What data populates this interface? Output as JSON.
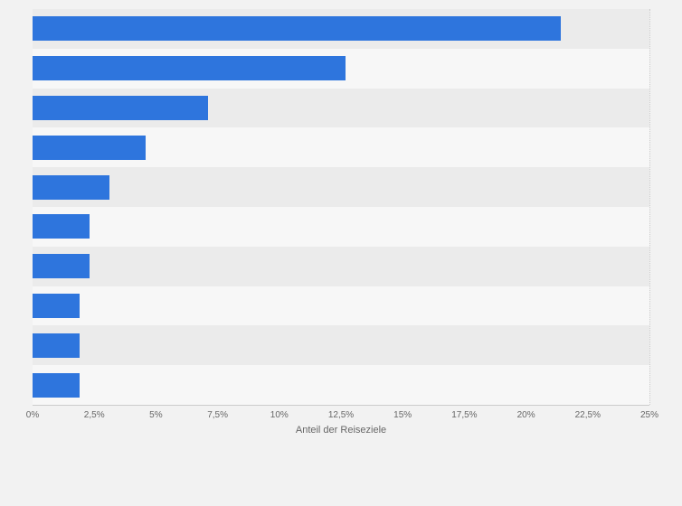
{
  "chart_data": {
    "type": "bar",
    "orientation": "horizontal",
    "title": "",
    "xlabel": "Anteil der Reiseziele",
    "ylabel": "",
    "xlim": [
      0,
      25
    ],
    "x_tick_labels": [
      "0%",
      "2,5%",
      "5%",
      "7,5%",
      "10%",
      "12,5%",
      "15%",
      "17,5%",
      "20%",
      "22,5%",
      "25%"
    ],
    "values": [
      21.4,
      12.7,
      7.1,
      4.6,
      3.1,
      2.3,
      2.3,
      1.9,
      1.9,
      1.9
    ],
    "grid": "dotted-vertical",
    "legend": "none",
    "colors": {
      "bar": "#2e75dd",
      "stripe_dark": "#ebebeb",
      "stripe_light": "#f7f7f7",
      "background": "#f2f2f2",
      "gridline": "#cccccc",
      "axis_line": "#cccccc",
      "tick_text": "#666666",
      "axis_label_text": "#666666"
    }
  }
}
